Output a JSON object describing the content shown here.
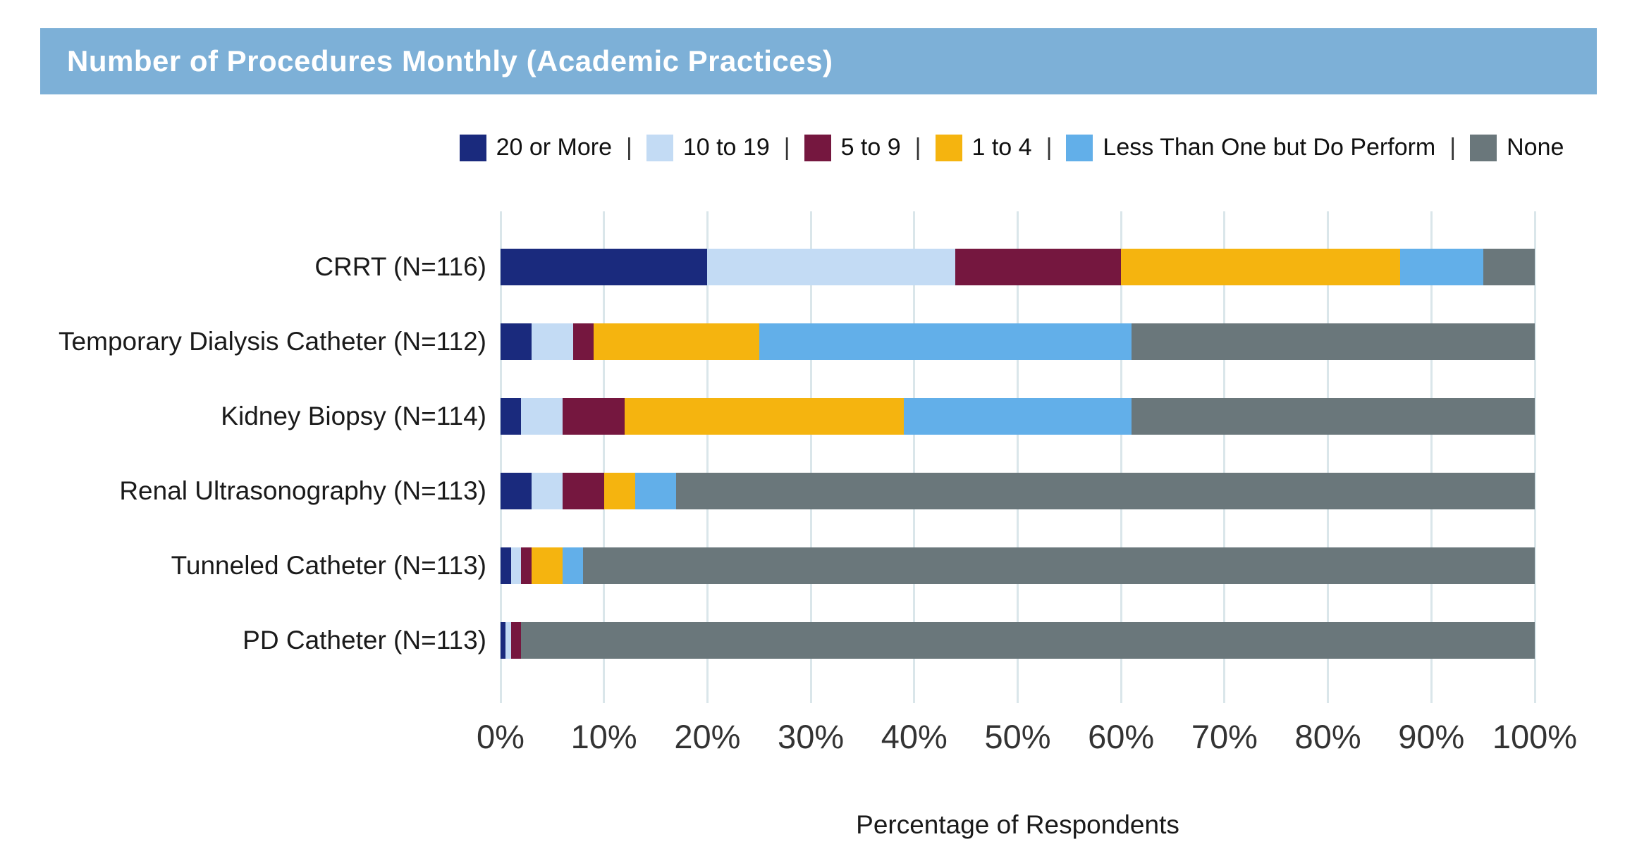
{
  "title": "Number of Procedures Monthly (Academic Practices)",
  "colors": {
    "header_bar": "#7DB0D7",
    "gridline": "#DAE6EA",
    "title_text": "#FFFFFF"
  },
  "legend": {
    "separator": "|",
    "items": [
      {
        "label": "20 or More",
        "color": "#1A2A7D"
      },
      {
        "label": "10 to 19",
        "color": "#C3DBF4"
      },
      {
        "label": "5 to 9",
        "color": "#75173F"
      },
      {
        "label": "1 to 4",
        "color": "#F5B40F"
      },
      {
        "label": "Less Than One but Do Perform",
        "color": "#62AFE9"
      },
      {
        "label": "None",
        "color": "#6A777B"
      }
    ]
  },
  "chart_data": {
    "type": "bar",
    "orientation": "horizontal-stacked",
    "title": "Number of Procedures Monthly (Academic Practices)",
    "xlabel": "Percentage of Respondents",
    "ylabel": "",
    "xlim": [
      0,
      100
    ],
    "x_ticks": [
      "0%",
      "10%",
      "20%",
      "30%",
      "40%",
      "50%",
      "60%",
      "70%",
      "80%",
      "90%",
      "100%"
    ],
    "grid": "vertical",
    "legend_position": "top",
    "categories": [
      "CRRT (N=116)",
      "Temporary Dialysis Catheter (N=112)",
      "Kidney Biopsy (N=114)",
      "Renal Ultrasonography (N=113)",
      "Tunneled Catheter (N=113)",
      "PD Catheter (N=113)"
    ],
    "series": [
      {
        "name": "20 or More",
        "color": "#1A2A7D",
        "values": [
          20,
          3,
          2,
          3,
          1,
          0.5
        ]
      },
      {
        "name": "10 to 19",
        "color": "#C3DBF4",
        "values": [
          24,
          4,
          4,
          3,
          1,
          0.5
        ]
      },
      {
        "name": "5 to 9",
        "color": "#75173F",
        "values": [
          16,
          2,
          6,
          4,
          1,
          1
        ]
      },
      {
        "name": "1 to 4",
        "color": "#F5B40F",
        "values": [
          27,
          16,
          27,
          3,
          3,
          0
        ]
      },
      {
        "name": "Less Than One but Do Perform",
        "color": "#62AFE9",
        "values": [
          8,
          36,
          22,
          4,
          2,
          0
        ]
      },
      {
        "name": "None",
        "color": "#6A777B",
        "values": [
          5,
          39,
          39,
          83,
          92,
          98
        ]
      }
    ]
  }
}
